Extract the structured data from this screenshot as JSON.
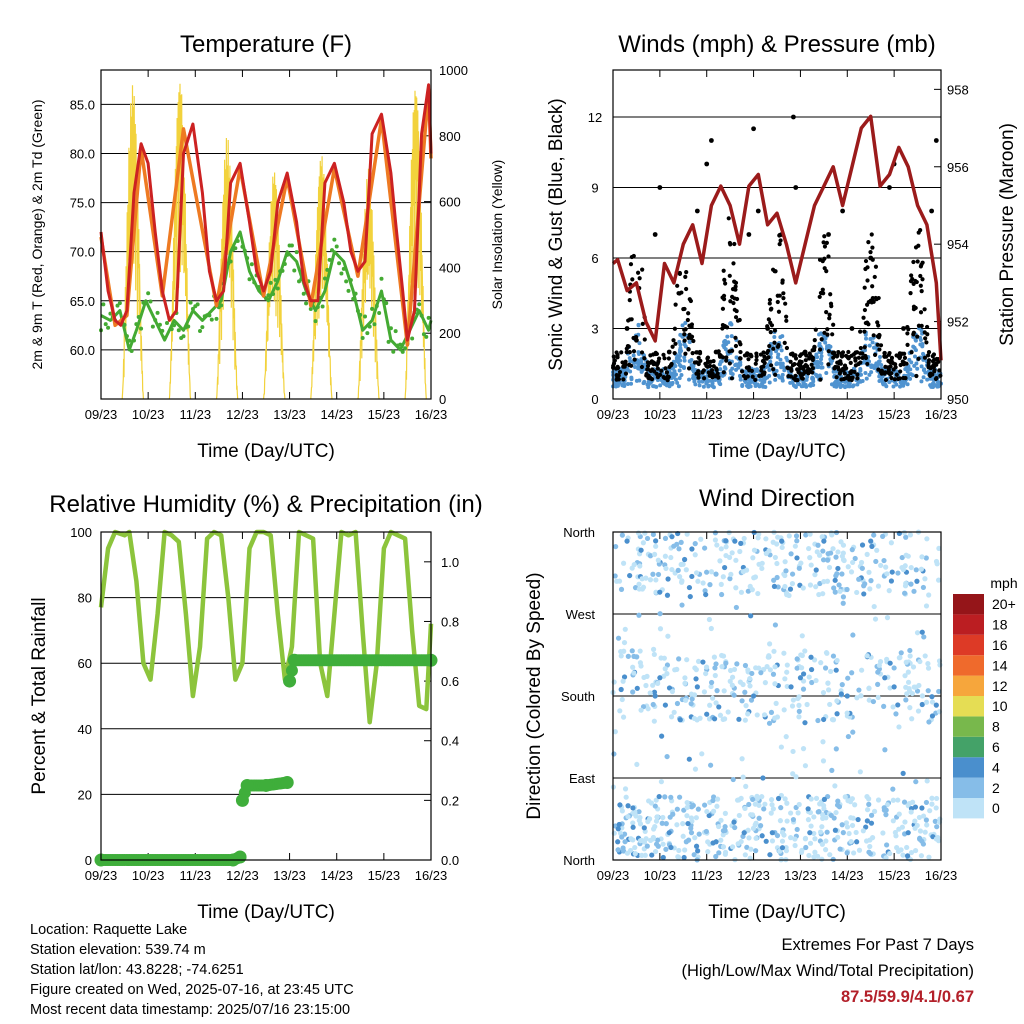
{
  "chart_data": [
    {
      "type": "line",
      "title": "Temperature (F)",
      "xlabel": "Time (Day/UTC)",
      "ylabel": "2m & 9m T (Red, Orange) & 2m Td (Green)",
      "y2label": "Solar Insolation (Yellow)",
      "x_ticks": [
        "09/23",
        "10/23",
        "11/23",
        "12/23",
        "13/23",
        "14/23",
        "15/23",
        "16/23"
      ],
      "xlim": [
        0,
        7
      ],
      "ylim": [
        55.0,
        88.5
      ],
      "y_ticks": [
        60.0,
        65.0,
        70.0,
        75.0,
        80.0,
        85.0
      ],
      "y2lim": [
        0,
        1000
      ],
      "y2_ticks": [
        0,
        200,
        400,
        600,
        800,
        1000
      ],
      "colors": {
        "temp2m": "#cc2222",
        "temp9m": "#ee7a22",
        "dewpoint": "#44aa33",
        "solar": "#f2d23c"
      },
      "series": [
        {
          "name": "2m T",
          "x": [
            0,
            0.15,
            0.3,
            0.42,
            0.55,
            0.7,
            0.85,
            1.0,
            1.15,
            1.3,
            1.45,
            1.6,
            1.75,
            1.95,
            2.15,
            2.3,
            2.45,
            2.6,
            2.75,
            2.95,
            3.15,
            3.3,
            3.45,
            3.6,
            3.75,
            3.95,
            4.15,
            4.3,
            4.45,
            4.6,
            4.75,
            4.95,
            5.15,
            5.3,
            5.45,
            5.6,
            5.75,
            5.95,
            6.15,
            6.25,
            6.4,
            6.5,
            6.65,
            6.8,
            6.95,
            7.0
          ],
          "y": [
            72,
            66,
            63,
            62.5,
            64,
            76,
            81,
            79,
            72,
            66,
            63,
            64,
            80,
            83,
            76,
            68,
            65,
            66,
            77,
            79,
            73,
            68,
            66,
            68,
            75,
            78,
            73,
            67,
            65,
            65,
            77,
            79,
            75,
            70,
            68,
            69,
            82,
            84,
            78,
            73,
            66,
            61,
            64,
            82,
            87,
            80
          ]
        },
        {
          "name": "9m T",
          "x": [
            0,
            0.3,
            0.55,
            0.85,
            1.3,
            1.75,
            2.45,
            2.95,
            3.45,
            3.95,
            4.45,
            4.95,
            5.45,
            5.95,
            6.5,
            6.95,
            7.0
          ],
          "y": [
            71.5,
            62.5,
            63.5,
            80.5,
            65.5,
            82.5,
            64.5,
            78.5,
            65.5,
            77.5,
            64.5,
            78.5,
            67.5,
            83.5,
            60.5,
            86.5,
            79.5
          ]
        },
        {
          "name": "2m Td",
          "x": [
            0,
            0.2,
            0.4,
            0.6,
            0.75,
            0.95,
            1.15,
            1.35,
            1.55,
            1.75,
            1.95,
            2.15,
            2.35,
            2.55,
            2.75,
            2.95,
            3.15,
            3.35,
            3.55,
            3.75,
            3.95,
            4.15,
            4.35,
            4.55,
            4.75,
            4.95,
            5.15,
            5.35,
            5.55,
            5.75,
            5.95,
            6.15,
            6.35,
            6.55,
            6.75,
            6.95,
            7.0
          ],
          "y": [
            63.5,
            63,
            64,
            60,
            62,
            65,
            63,
            61,
            63,
            62,
            64,
            63,
            64,
            65,
            70,
            72,
            68,
            66,
            65,
            67,
            70,
            69,
            66,
            64,
            66,
            70,
            69,
            66,
            62,
            63,
            66,
            61,
            60,
            62,
            64,
            62,
            63
          ]
        },
        {
          "name": "Solar",
          "x": [
            0.45,
            0.6,
            0.75,
            0.9,
            1.45,
            1.6,
            1.75,
            1.9,
            2.45,
            2.6,
            2.75,
            2.9,
            3.45,
            3.6,
            3.75,
            3.9,
            4.45,
            4.6,
            4.75,
            4.9,
            5.45,
            5.6,
            5.75,
            5.9,
            6.45,
            6.6,
            6.75,
            6.9
          ],
          "y": [
            0,
            700,
            960,
            0,
            0,
            650,
            980,
            0,
            0,
            520,
            800,
            0,
            0,
            480,
            700,
            0,
            0,
            400,
            750,
            0,
            0,
            350,
            700,
            0,
            0,
            650,
            960,
            0
          ]
        }
      ]
    },
    {
      "type": "scatter",
      "title": "Winds (mph) & Pressure (mb)",
      "xlabel": "Time (Day/UTC)",
      "ylabel": "Sonic Wind & Gust (Blue, Black)",
      "y2label": "Station Pressure (Maroon)",
      "x_ticks": [
        "09/23",
        "10/23",
        "11/23",
        "12/23",
        "13/23",
        "14/23",
        "15/23",
        "16/23"
      ],
      "xlim": [
        0,
        7
      ],
      "ylim": [
        0,
        14
      ],
      "y_ticks": [
        0,
        3,
        6,
        9,
        12
      ],
      "y2lim": [
        950,
        958.5
      ],
      "y2_ticks": [
        950,
        952,
        954,
        956,
        958
      ],
      "colors": {
        "wind": "#4f93d0",
        "gust": "#000000",
        "pressure": "#9b1b1b"
      },
      "series": [
        {
          "name": "Gust",
          "x": [
            0.3,
            0.5,
            0.9,
            1.0,
            1.2,
            1.8,
            2.0,
            2.1,
            2.2,
            2.9,
            3.0,
            3.1,
            3.3,
            3.6,
            3.85,
            3.9,
            4.1,
            4.6,
            4.9,
            5.1,
            5.5,
            5.9,
            6.0,
            6.2,
            6.8,
            6.9
          ],
          "y": [
            3,
            2.5,
            7,
            9,
            2,
            8,
            10,
            11,
            2,
            7,
            11.5,
            8,
            3,
            7,
            12,
            9,
            2,
            7,
            8,
            3,
            6,
            9,
            10,
            3,
            8,
            11
          ]
        },
        {
          "name": "Pressure",
          "x": [
            0,
            0.1,
            0.3,
            0.5,
            0.7,
            0.9,
            1.1,
            1.3,
            1.5,
            1.7,
            1.9,
            2.1,
            2.3,
            2.5,
            2.7,
            2.9,
            3.1,
            3.3,
            3.5,
            3.7,
            3.9,
            4.1,
            4.3,
            4.5,
            4.7,
            4.9,
            5.1,
            5.3,
            5.5,
            5.7,
            5.9,
            6.1,
            6.3,
            6.5,
            6.7,
            6.9,
            7.0
          ],
          "y": [
            953.5,
            953.6,
            952.8,
            953.0,
            952.0,
            951.5,
            953.5,
            953.0,
            954.0,
            954.5,
            953.5,
            955.0,
            955.5,
            955.0,
            954.0,
            955.5,
            955.8,
            954.5,
            954.8,
            954.0,
            953.0,
            954.0,
            955.0,
            955.5,
            956.0,
            955.0,
            956.0,
            957.0,
            957.3,
            955.5,
            955.8,
            956.5,
            956.0,
            955.0,
            954.5,
            953.0,
            951.0
          ]
        }
      ]
    },
    {
      "type": "line",
      "title": "Relative Humidity (%) & Precipitation (in)",
      "xlabel": "Time (Day/UTC)",
      "ylabel": "Percent & Total Rainfall",
      "x_ticks": [
        "09/23",
        "10/23",
        "11/23",
        "12/23",
        "13/23",
        "14/23",
        "15/23",
        "16/23"
      ],
      "xlim": [
        0,
        7
      ],
      "ylim": [
        0,
        100
      ],
      "y_ticks": [
        0,
        20,
        40,
        60,
        80,
        100
      ],
      "y2lim": [
        0,
        1.1
      ],
      "y2_ticks": [
        "0.0",
        "0.2",
        "0.4",
        "0.6",
        "0.8",
        "1.0"
      ],
      "colors": {
        "rh": "#8cc43c",
        "precip": "#3fae3b"
      },
      "series": [
        {
          "name": "RH",
          "x": [
            0,
            0.15,
            0.3,
            0.5,
            0.6,
            0.75,
            0.9,
            1.05,
            1.2,
            1.35,
            1.5,
            1.65,
            1.8,
            1.95,
            2.1,
            2.25,
            2.4,
            2.55,
            2.7,
            2.85,
            3.0,
            3.15,
            3.3,
            3.45,
            3.6,
            3.75,
            3.9,
            4.05,
            4.2,
            4.35,
            4.5,
            4.65,
            4.8,
            4.95,
            5.1,
            5.25,
            5.4,
            5.55,
            5.7,
            5.85,
            6.0,
            6.15,
            6.3,
            6.45,
            6.6,
            6.75,
            6.9,
            7.0
          ],
          "y": [
            77,
            95,
            100,
            99,
            100,
            85,
            60,
            55,
            75,
            100,
            99,
            97,
            75,
            50,
            65,
            98,
            100,
            99,
            80,
            55,
            60,
            95,
            100,
            100,
            99,
            75,
            55,
            65,
            100,
            99,
            98,
            60,
            50,
            75,
            100,
            99,
            100,
            70,
            42,
            60,
            95,
            100,
            99,
            98,
            70,
            47,
            46,
            72
          ]
        },
        {
          "name": "Precip",
          "x": [
            0,
            2.8,
            2.95,
            3.0,
            3.1,
            3.5,
            3.95,
            4.0,
            4.1,
            7.0
          ],
          "y": [
            0,
            0,
            0.01,
            0.2,
            0.25,
            0.25,
            0.26,
            0.6,
            0.67,
            0.67
          ]
        }
      ]
    },
    {
      "type": "scatter",
      "title": "Wind Direction",
      "xlabel": "Time (Day/UTC)",
      "ylabel": "Direction (Colored By Speed)",
      "x_ticks": [
        "09/23",
        "10/23",
        "11/23",
        "12/23",
        "13/23",
        "14/23",
        "15/23",
        "16/23"
      ],
      "xlim": [
        0,
        7
      ],
      "ylim": [
        0,
        360
      ],
      "y_ticks": [
        "North",
        "East",
        "South",
        "West",
        "North"
      ],
      "legend": {
        "title": "mph",
        "labels": [
          "0",
          "2",
          "4",
          "6",
          "8",
          "10",
          "12",
          "14",
          "16",
          "18",
          "20+"
        ],
        "colors": [
          "#bfe3f7",
          "#86bde8",
          "#4a8fcd",
          "#44a268",
          "#78b84c",
          "#e5dd54",
          "#f6a63c",
          "#ef6a2c",
          "#dd3a26",
          "#bb1e22",
          "#951519"
        ]
      },
      "series": [
        {
          "name": "Direction",
          "x": [
            0.1,
            0.3,
            0.6,
            0.9,
            1.0,
            1.2,
            1.6,
            1.8,
            2.0,
            2.2,
            2.6,
            2.8,
            3.0,
            3.2,
            3.4,
            3.6,
            3.8,
            4.0,
            4.2,
            4.5,
            4.8,
            5.0,
            5.2,
            5.5,
            5.8,
            6.0,
            6.3,
            6.6,
            6.9
          ],
          "y": [
            20,
            350,
            340,
            180,
            200,
            30,
            40,
            190,
            160,
            20,
            350,
            30,
            180,
            90,
            30,
            350,
            190,
            200,
            30,
            350,
            320,
            180,
            20,
            350,
            200,
            190,
            30,
            250,
            170
          ]
        }
      ]
    }
  ],
  "info": {
    "location": "Location: Raquette Lake",
    "elevation": "Station elevation: 539.74 m",
    "latlon": "Station lat/lon: 43.8228; -74.6251",
    "created": "Figure created on Wed, 2025-07-16, at 23:45 UTC",
    "recent": "Most recent data timestamp: 2025/07/16 23:15:00"
  },
  "extremes": {
    "title": "Extremes For Past 7 Days",
    "subtitle": "(High/Low/Max Wind/Total Precipitation)",
    "values": "87.5/59.9/4.1/0.67"
  }
}
